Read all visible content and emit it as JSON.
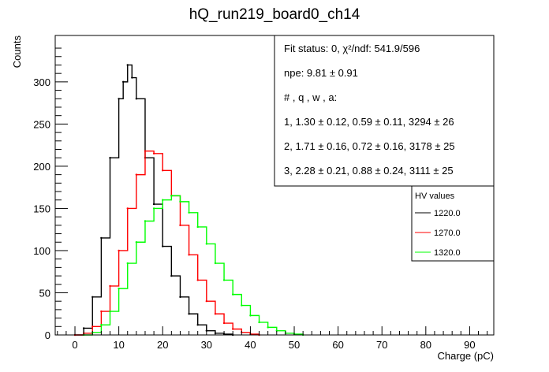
{
  "chart_data": {
    "type": "line",
    "title": "hQ_run219_board0_ch14",
    "xlabel": "Charge (pC)",
    "ylabel": "Counts",
    "xlim": [
      -4.5,
      95.5
    ],
    "ylim": [
      0,
      355
    ],
    "x_ticks": [
      0,
      10,
      20,
      30,
      40,
      50,
      60,
      70,
      80,
      90
    ],
    "y_ticks": [
      0,
      50,
      100,
      150,
      200,
      250,
      300
    ],
    "grid": false,
    "legend_position": "right",
    "legend_title": "HV values",
    "stats_lines": [
      "Fit status: 0, χ²/ndf: 541.9/596",
      "npe: 9.81 ± 0.91",
      "# , q , w , a:",
      "1, 1.30 ± 0.12, 0.59 ± 0.11, 3294 ± 26",
      "2, 1.71 ± 0.16, 0.72 ± 0.16, 3178 ± 25",
      "3, 2.28 ± 0.21, 0.88 ± 0.24, 3111 ± 25"
    ],
    "series": [
      {
        "name": "1220.0",
        "color": "#000000",
        "x": [
          0,
          2,
          4,
          6,
          8,
          10,
          11,
          12,
          13,
          14,
          16,
          18,
          20,
          22,
          24,
          26,
          28,
          30,
          32,
          34,
          36
        ],
        "y": [
          0,
          8,
          45,
          115,
          210,
          280,
          300,
          320,
          305,
          280,
          210,
          155,
          105,
          70,
          45,
          25,
          12,
          5,
          2,
          1,
          0
        ]
      },
      {
        "name": "1270.0",
        "color": "#ff0000",
        "x": [
          0,
          2,
          4,
          6,
          8,
          10,
          12,
          14,
          16,
          18,
          20,
          22,
          24,
          26,
          28,
          30,
          32,
          34,
          36,
          38,
          40,
          42
        ],
        "y": [
          0,
          2,
          10,
          28,
          58,
          100,
          150,
          190,
          218,
          215,
          195,
          165,
          130,
          95,
          65,
          40,
          25,
          14,
          7,
          3,
          1,
          0
        ]
      },
      {
        "name": "1320.0",
        "color": "#00ff00",
        "x": [
          2,
          4,
          6,
          8,
          10,
          12,
          14,
          16,
          18,
          20,
          22,
          24,
          26,
          28,
          30,
          32,
          34,
          36,
          38,
          40,
          42,
          44,
          46,
          48,
          50,
          52
        ],
        "y": [
          0,
          3,
          12,
          28,
          55,
          85,
          110,
          135,
          150,
          160,
          165,
          158,
          145,
          128,
          108,
          85,
          65,
          48,
          35,
          23,
          15,
          9,
          5,
          2,
          1,
          0
        ]
      }
    ]
  }
}
